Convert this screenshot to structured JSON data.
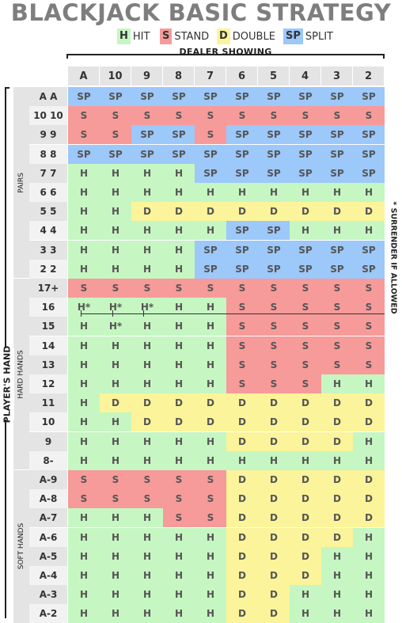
{
  "title": "BLACKJACK BASIC STRATEGY",
  "colors": {
    "H": "#c6f6c2",
    "S": "#f79a9a",
    "D": "#fbf49a",
    "SP": "#9cc8fa",
    "header_bg": "#e4e4e4",
    "row_a": "#e4e4e4",
    "row_b": "#f2f2f2"
  },
  "legend": [
    {
      "code": "H",
      "label": "HIT"
    },
    {
      "code": "S",
      "label": "STAND"
    },
    {
      "code": "D",
      "label": "DOUBLE"
    },
    {
      "code": "SP",
      "label": "SPLIT"
    }
  ],
  "dealer_label": "DEALER SHOWING",
  "dealer_cards": [
    "A",
    "10",
    "9",
    "8",
    "7",
    "6",
    "5",
    "4",
    "3",
    "2"
  ],
  "player_label": "PLAYER'S HAND",
  "surrender_note": "* SURRENDER IF ALLOWED",
  "groups": [
    {
      "name": "PAIRS",
      "rows": [
        {
          "hand": "A A",
          "cells": [
            "SP",
            "SP",
            "SP",
            "SP",
            "SP",
            "SP",
            "SP",
            "SP",
            "SP",
            "SP"
          ]
        },
        {
          "hand": "10 10",
          "cells": [
            "S",
            "S",
            "S",
            "S",
            "S",
            "S",
            "S",
            "S",
            "S",
            "S"
          ]
        },
        {
          "hand": "9 9",
          "cells": [
            "S",
            "S",
            "SP",
            "SP",
            "S",
            "SP",
            "SP",
            "SP",
            "SP",
            "SP"
          ]
        },
        {
          "hand": "8 8",
          "cells": [
            "SP",
            "SP",
            "SP",
            "SP",
            "SP",
            "SP",
            "SP",
            "SP",
            "SP",
            "SP"
          ]
        },
        {
          "hand": "7 7",
          "cells": [
            "H",
            "H",
            "H",
            "H",
            "SP",
            "SP",
            "SP",
            "SP",
            "SP",
            "SP"
          ]
        },
        {
          "hand": "6 6",
          "cells": [
            "H",
            "H",
            "H",
            "H",
            "H",
            "H",
            "H",
            "H",
            "H",
            "H"
          ]
        },
        {
          "hand": "5 5",
          "cells": [
            "H",
            "H",
            "D",
            "D",
            "D",
            "D",
            "D",
            "D",
            "D",
            "D"
          ]
        },
        {
          "hand": "4 4",
          "cells": [
            "H",
            "H",
            "H",
            "H",
            "H",
            "SP",
            "SP",
            "H",
            "H",
            "H"
          ]
        },
        {
          "hand": "3 3",
          "cells": [
            "H",
            "H",
            "H",
            "H",
            "SP",
            "SP",
            "SP",
            "SP",
            "SP",
            "SP"
          ]
        },
        {
          "hand": "2 2",
          "cells": [
            "H",
            "H",
            "H",
            "H",
            "SP",
            "SP",
            "SP",
            "SP",
            "SP",
            "SP"
          ]
        }
      ]
    },
    {
      "name": "HARD HANDS",
      "rows": [
        {
          "hand": "17+",
          "cells": [
            "S",
            "S",
            "S",
            "S",
            "S",
            "S",
            "S",
            "S",
            "S",
            "S"
          ]
        },
        {
          "hand": "16",
          "cells": [
            "H*",
            "H*",
            "H*",
            "H",
            "H",
            "S",
            "S",
            "S",
            "S",
            "S"
          ]
        },
        {
          "hand": "15",
          "cells": [
            "H",
            "H*",
            "H",
            "H",
            "H",
            "S",
            "S",
            "S",
            "S",
            "S"
          ]
        },
        {
          "hand": "14",
          "cells": [
            "H",
            "H",
            "H",
            "H",
            "H",
            "S",
            "S",
            "S",
            "S",
            "S"
          ]
        },
        {
          "hand": "13",
          "cells": [
            "H",
            "H",
            "H",
            "H",
            "H",
            "S",
            "S",
            "S",
            "S",
            "S"
          ]
        },
        {
          "hand": "12",
          "cells": [
            "H",
            "H",
            "H",
            "H",
            "H",
            "S",
            "S",
            "S",
            "H",
            "H"
          ]
        },
        {
          "hand": "11",
          "cells": [
            "H",
            "D",
            "D",
            "D",
            "D",
            "D",
            "D",
            "D",
            "D",
            "D"
          ]
        },
        {
          "hand": "10",
          "cells": [
            "H",
            "H",
            "D",
            "D",
            "D",
            "D",
            "D",
            "D",
            "D",
            "D"
          ]
        },
        {
          "hand": "9",
          "cells": [
            "H",
            "H",
            "H",
            "H",
            "H",
            "D",
            "D",
            "D",
            "D",
            "H"
          ]
        },
        {
          "hand": "8-",
          "cells": [
            "H",
            "H",
            "H",
            "H",
            "H",
            "H",
            "H",
            "H",
            "H",
            "H"
          ]
        }
      ]
    },
    {
      "name": "SOFT HANDS",
      "rows": [
        {
          "hand": "A-9",
          "cells": [
            "S",
            "S",
            "S",
            "S",
            "S",
            "D",
            "D",
            "D",
            "D",
            "D"
          ]
        },
        {
          "hand": "A-8",
          "cells": [
            "S",
            "S",
            "S",
            "S",
            "S",
            "D",
            "D",
            "D",
            "D",
            "D"
          ]
        },
        {
          "hand": "A-7",
          "cells": [
            "H",
            "H",
            "H",
            "S",
            "S",
            "D",
            "D",
            "D",
            "D",
            "D"
          ]
        },
        {
          "hand": "A-6",
          "cells": [
            "H",
            "H",
            "H",
            "H",
            "H",
            "D",
            "D",
            "D",
            "D",
            "H"
          ]
        },
        {
          "hand": "A-5",
          "cells": [
            "H",
            "H",
            "H",
            "H",
            "H",
            "D",
            "D",
            "D",
            "H",
            "H"
          ]
        },
        {
          "hand": "A-4",
          "cells": [
            "H",
            "H",
            "H",
            "H",
            "H",
            "D",
            "D",
            "D",
            "H",
            "H"
          ]
        },
        {
          "hand": "A-3",
          "cells": [
            "H",
            "H",
            "H",
            "H",
            "H",
            "D",
            "D",
            "H",
            "H",
            "H"
          ]
        },
        {
          "hand": "A-2",
          "cells": [
            "H",
            "H",
            "H",
            "H",
            "H",
            "D",
            "D",
            "H",
            "H",
            "H"
          ]
        }
      ]
    }
  ]
}
